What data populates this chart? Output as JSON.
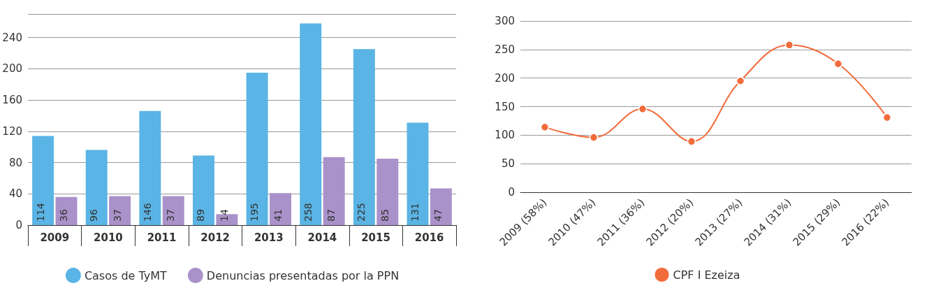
{
  "chart_data": [
    {
      "type": "bar",
      "categories": [
        "2009",
        "2010",
        "2011",
        "2012",
        "2013",
        "2014",
        "2015",
        "2016"
      ],
      "series": [
        {
          "name": "Casos de TyMT",
          "color": "#5ab4e5",
          "values": [
            114,
            96,
            146,
            89,
            195,
            258,
            225,
            131
          ]
        },
        {
          "name": "Denuncias presentadas por la PPN",
          "color": "#a992c9",
          "values": [
            36,
            37,
            37,
            14,
            41,
            87,
            85,
            47
          ]
        }
      ],
      "ylim": [
        0,
        270
      ],
      "yticks": [
        0,
        40,
        80,
        120,
        160,
        200,
        240
      ],
      "grid": "y",
      "legend": "bottom",
      "data_labels": true
    },
    {
      "type": "line",
      "categories": [
        "2009 (58%)",
        "2010 (47%)",
        "2011 (36%)",
        "2012 (20%)",
        "2013 (27%)",
        "2014 (31%)",
        "2015 (29%)",
        "2016 (22%)"
      ],
      "series": [
        {
          "name": "CPF I Ezeiza",
          "color": "#f26b3a",
          "values": [
            114,
            96,
            146,
            89,
            195,
            258,
            225,
            131
          ]
        }
      ],
      "ylim": [
        0,
        300
      ],
      "yticks": [
        0,
        50,
        100,
        150,
        200,
        250,
        300
      ],
      "grid": "y",
      "legend": "bottom",
      "marker": "circle",
      "line_style": "solid"
    }
  ]
}
